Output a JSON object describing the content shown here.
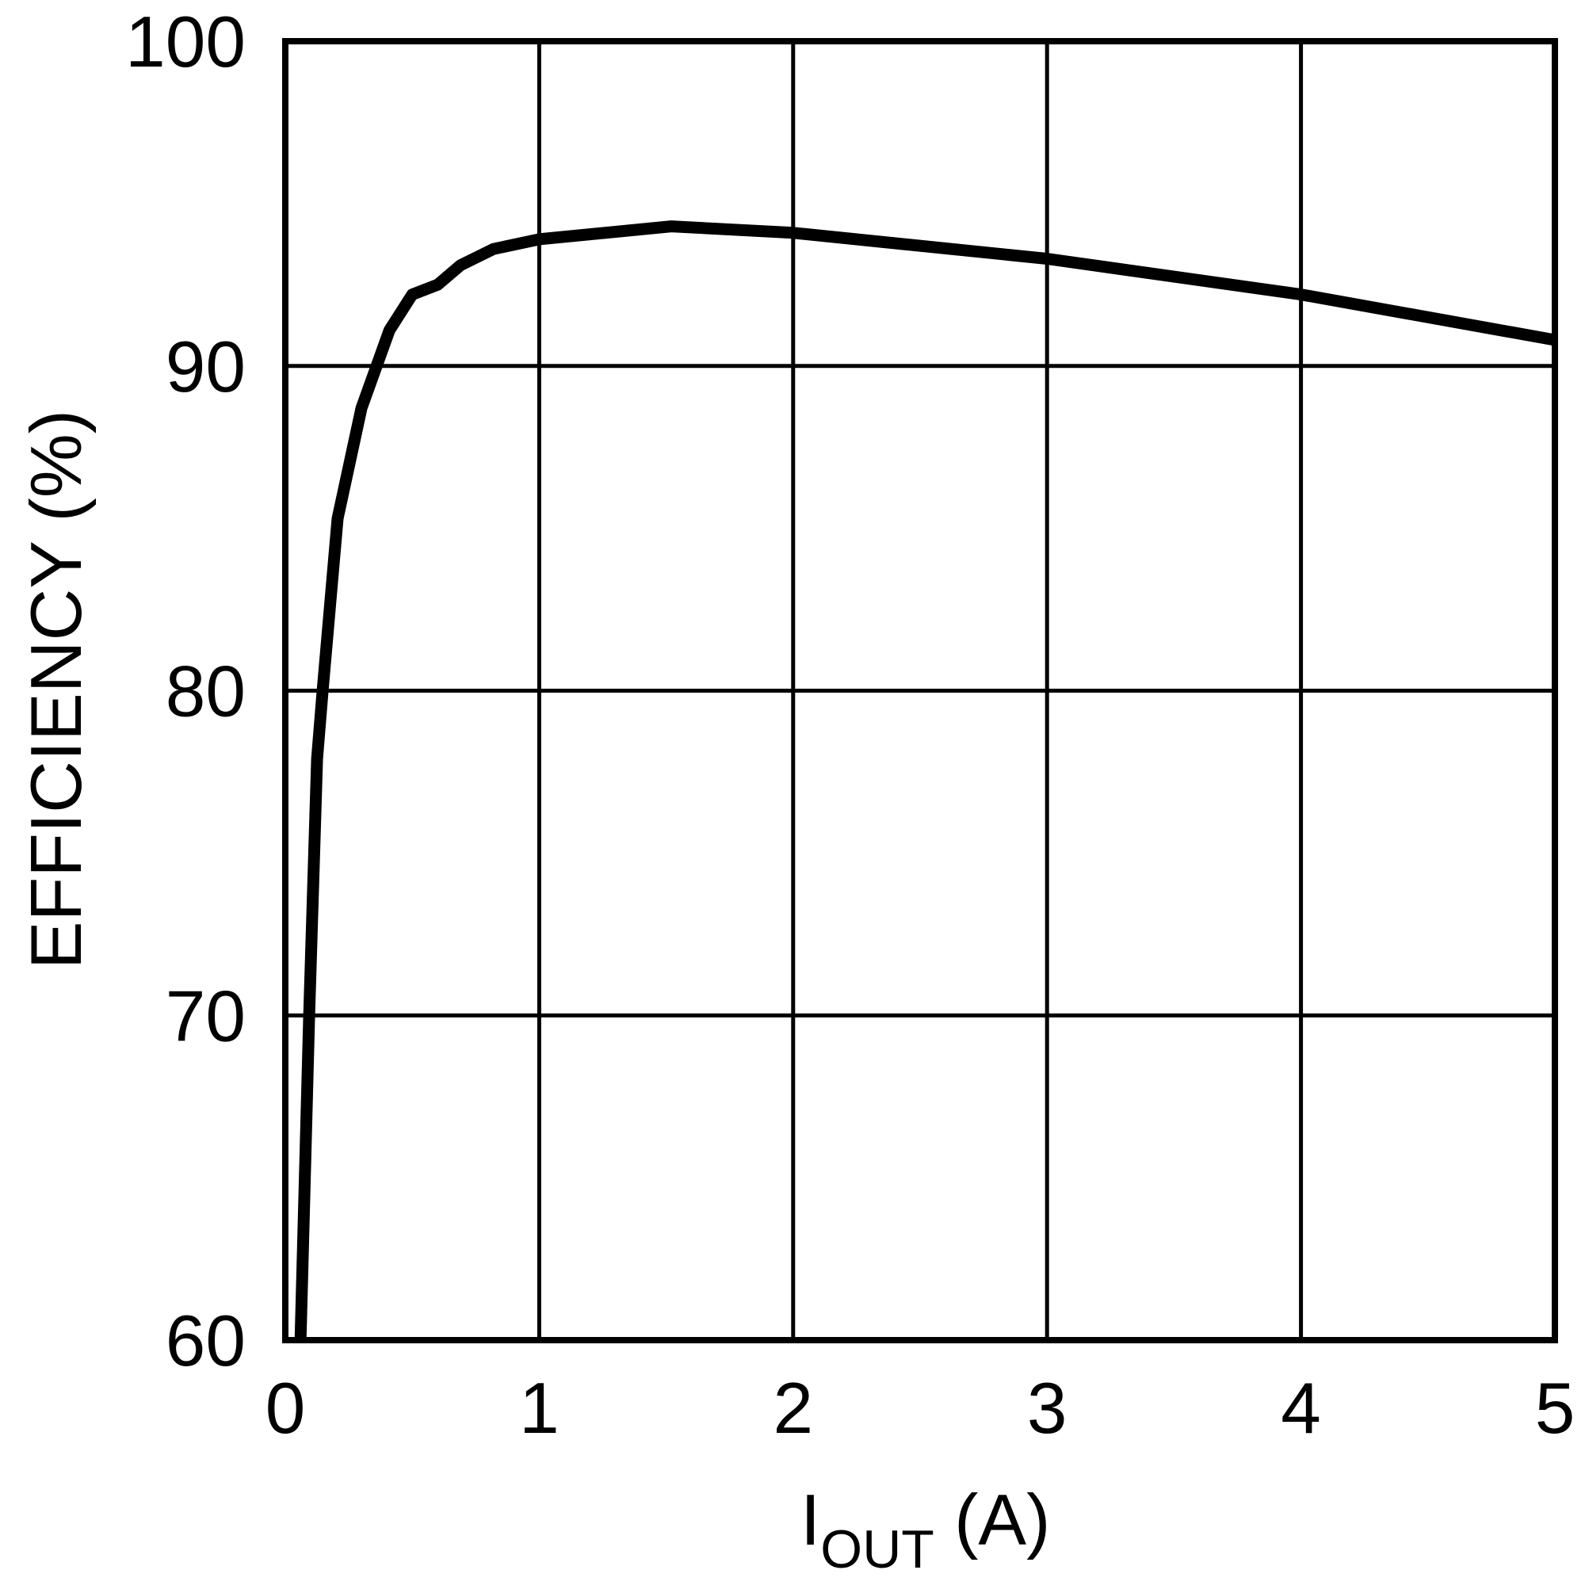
{
  "chart_data": {
    "type": "line",
    "title": "",
    "xlabel": "IOUT (A)",
    "xlabel_parts": {
      "main": "I",
      "subscript": "OUT",
      "suffix": " (A)"
    },
    "ylabel": "EFFICIENCY (%)",
    "xlim": [
      0,
      5
    ],
    "ylim": [
      60,
      100
    ],
    "x_ticks": [
      0,
      1,
      2,
      3,
      4,
      5
    ],
    "x_tick_labels": [
      "0",
      "1",
      "2",
      "3",
      "4",
      "5"
    ],
    "y_ticks": [
      60,
      70,
      80,
      90,
      100
    ],
    "y_tick_labels": [
      "60",
      "70",
      "80",
      "90",
      "100"
    ],
    "grid": true,
    "legend": null,
    "series": [
      {
        "name": "Efficiency",
        "color": "#000000",
        "x": [
          0.06,
          0.094,
          0.125,
          0.147,
          0.206,
          0.3,
          0.41,
          0.5,
          0.6,
          0.69,
          0.82,
          1.0,
          1.52,
          2.0,
          3.0,
          4.0,
          5.0
        ],
        "y": [
          60.0,
          70.0,
          77.9,
          80.0,
          85.3,
          88.7,
          91.1,
          92.2,
          92.5,
          93.1,
          93.6,
          93.9,
          94.3,
          94.1,
          93.3,
          92.2,
          90.8
        ]
      }
    ]
  },
  "layout_colors": {
    "background": "#ffffff",
    "axis": "#000000",
    "grid": "#000000",
    "line": "#000000"
  }
}
